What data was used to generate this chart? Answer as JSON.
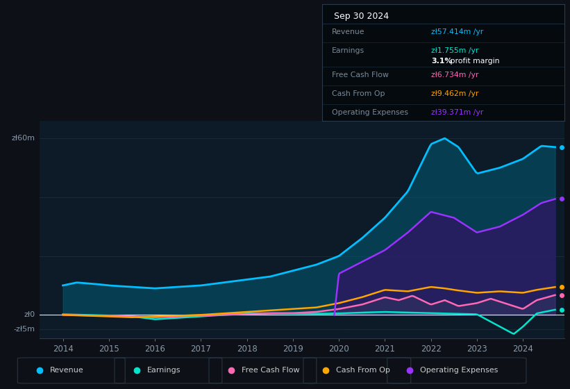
{
  "bg_color": "#0d1117",
  "plot_bg_color": "#0d1a27",
  "grid_color": "#1e2d3d",
  "revenue_color": "#00bfff",
  "earnings_color": "#00e5cc",
  "fcf_color": "#ff69b4",
  "cfo_color": "#ffa500",
  "opex_color": "#9933ff",
  "revenue_fill": "#00607a",
  "opex_fill": "#3a0a6a",
  "fcf_fill": "#445566",
  "tooltip_bg": "#050a0f",
  "tooltip_border": "#2a3a4a",
  "rev_x": [
    2014.0,
    2014.3,
    2014.7,
    2015.0,
    2015.5,
    2016.0,
    2016.5,
    2017.0,
    2017.5,
    2018.0,
    2018.5,
    2019.0,
    2019.5,
    2020.0,
    2020.5,
    2021.0,
    2021.5,
    2022.0,
    2022.3,
    2022.6,
    2023.0,
    2023.5,
    2024.0,
    2024.4,
    2024.7
  ],
  "rev_y": [
    10,
    11,
    10.5,
    10,
    9.5,
    9,
    9.5,
    10,
    11,
    12,
    13,
    15,
    17,
    20,
    26,
    33,
    42,
    58,
    60,
    57,
    48,
    50,
    53,
    57.4,
    57
  ],
  "earn_x": [
    2014.0,
    2015.0,
    2015.5,
    2016.0,
    2016.5,
    2017.0,
    2017.5,
    2018.0,
    2018.5,
    2019.0,
    2019.5,
    2020.0,
    2020.5,
    2021.0,
    2021.5,
    2022.0,
    2022.5,
    2023.0,
    2023.5,
    2023.8,
    2024.0,
    2024.3,
    2024.7
  ],
  "earn_y": [
    0.2,
    -0.2,
    -0.5,
    -1.5,
    -1.0,
    -0.5,
    0.0,
    0.5,
    0.6,
    0.5,
    0.4,
    0.5,
    0.8,
    1.0,
    0.8,
    0.6,
    0.4,
    0.2,
    -4.0,
    -6.5,
    -4.0,
    0.5,
    1.755
  ],
  "fcf_x": [
    2014.0,
    2015.0,
    2015.5,
    2016.0,
    2016.5,
    2017.0,
    2017.5,
    2018.0,
    2018.5,
    2019.0,
    2019.5,
    2020.0,
    2020.5,
    2021.0,
    2021.3,
    2021.6,
    2022.0,
    2022.3,
    2022.6,
    2023.0,
    2023.3,
    2023.6,
    2024.0,
    2024.3,
    2024.7
  ],
  "fcf_y": [
    0.0,
    -0.3,
    -0.5,
    -0.8,
    -0.5,
    -0.2,
    0.0,
    0.3,
    0.5,
    0.6,
    1.0,
    2.0,
    3.5,
    6.0,
    5.0,
    6.5,
    3.5,
    5.0,
    3.0,
    4.0,
    5.5,
    4.0,
    2.0,
    5.0,
    6.734
  ],
  "cfo_x": [
    2014.0,
    2015.0,
    2015.5,
    2016.0,
    2016.5,
    2017.0,
    2017.5,
    2018.0,
    2018.5,
    2019.0,
    2019.5,
    2020.0,
    2020.5,
    2021.0,
    2021.5,
    2022.0,
    2022.3,
    2022.5,
    2023.0,
    2023.5,
    2024.0,
    2024.3,
    2024.7
  ],
  "cfo_y": [
    0.0,
    -0.5,
    -0.8,
    -0.5,
    -0.3,
    0.0,
    0.5,
    1.0,
    1.5,
    2.0,
    2.5,
    4.0,
    6.0,
    8.5,
    8.0,
    9.5,
    9.0,
    8.5,
    7.5,
    8.0,
    7.5,
    8.5,
    9.462
  ],
  "opex_x": [
    2019.9,
    2020.0,
    2020.5,
    2021.0,
    2021.5,
    2022.0,
    2022.5,
    2023.0,
    2023.5,
    2024.0,
    2024.4,
    2024.7
  ],
  "opex_y": [
    0.0,
    14,
    18,
    22,
    28,
    35,
    33,
    28,
    30,
    34,
    38,
    39.371
  ],
  "legend_items": [
    "Revenue",
    "Earnings",
    "Free Cash Flow",
    "Cash From Op",
    "Operating Expenses"
  ]
}
